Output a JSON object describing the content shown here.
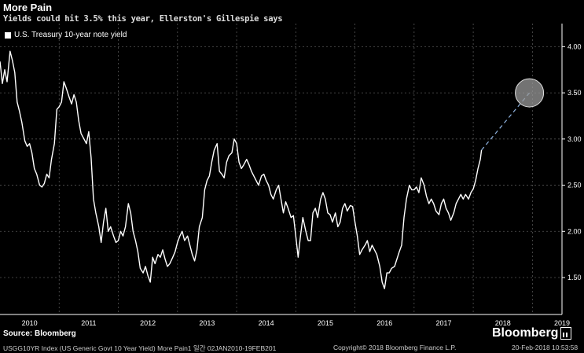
{
  "header": {
    "title": "More Pain",
    "subtitle": "Yields could hit 3.5% this year, Ellerston's Gillespie says"
  },
  "legend": {
    "label": "U.S. Treasury 10-year note yield"
  },
  "source": "Source: Bloomberg",
  "footer": {
    "left": "USGG10YR Index (US Generic Govt 10 Year Yield) More Pain1  일간 02JAN2010-19FEB201",
    "middle": "Copyright© 2018 Bloomberg Finance L.P.",
    "right": "20-Feb-2018 10:53:58"
  },
  "brand": {
    "name": "Bloomberg"
  },
  "colors": {
    "background": "#000000",
    "line": "#ffffff",
    "forecast": "#8fb3e0",
    "target_circle": "#9a9a9a"
  },
  "chart_data": {
    "type": "line",
    "title": "More Pain",
    "x_tick_labels": [
      "2010",
      "2011",
      "2012",
      "2013",
      "2014",
      "2015",
      "2016",
      "2017",
      "2018",
      "2019"
    ],
    "y_tick_labels": [
      "1.50",
      "2.00",
      "2.50",
      "3.00",
      "3.50",
      "4.00"
    ],
    "ylim": [
      1.1,
      4.25
    ],
    "xlim": [
      2010.0,
      2019.5
    ],
    "grid": "dashed",
    "legend_position": "top-left",
    "series": [
      {
        "name": "U.S. Treasury 10-year note yield",
        "points": [
          [
            2010.0,
            3.84
          ],
          [
            2010.04,
            3.6
          ],
          [
            2010.08,
            3.75
          ],
          [
            2010.12,
            3.62
          ],
          [
            2010.17,
            3.95
          ],
          [
            2010.21,
            3.85
          ],
          [
            2010.25,
            3.72
          ],
          [
            2010.29,
            3.4
          ],
          [
            2010.33,
            3.3
          ],
          [
            2010.37,
            3.18
          ],
          [
            2010.42,
            2.98
          ],
          [
            2010.46,
            2.92
          ],
          [
            2010.5,
            2.95
          ],
          [
            2010.54,
            2.85
          ],
          [
            2010.58,
            2.68
          ],
          [
            2010.62,
            2.62
          ],
          [
            2010.67,
            2.5
          ],
          [
            2010.71,
            2.48
          ],
          [
            2010.75,
            2.52
          ],
          [
            2010.79,
            2.62
          ],
          [
            2010.83,
            2.58
          ],
          [
            2010.87,
            2.78
          ],
          [
            2010.92,
            2.95
          ],
          [
            2010.96,
            3.32
          ],
          [
            2011.0,
            3.35
          ],
          [
            2011.04,
            3.4
          ],
          [
            2011.08,
            3.62
          ],
          [
            2011.12,
            3.55
          ],
          [
            2011.17,
            3.45
          ],
          [
            2011.21,
            3.38
          ],
          [
            2011.25,
            3.48
          ],
          [
            2011.29,
            3.4
          ],
          [
            2011.33,
            3.2
          ],
          [
            2011.37,
            3.06
          ],
          [
            2011.42,
            3.0
          ],
          [
            2011.46,
            2.95
          ],
          [
            2011.5,
            3.08
          ],
          [
            2011.54,
            2.8
          ],
          [
            2011.58,
            2.35
          ],
          [
            2011.62,
            2.2
          ],
          [
            2011.67,
            2.05
          ],
          [
            2011.71,
            1.88
          ],
          [
            2011.75,
            2.1
          ],
          [
            2011.79,
            2.25
          ],
          [
            2011.83,
            2.0
          ],
          [
            2011.87,
            2.05
          ],
          [
            2011.92,
            1.95
          ],
          [
            2011.96,
            1.88
          ],
          [
            2012.0,
            1.9
          ],
          [
            2012.04,
            2.0
          ],
          [
            2012.08,
            1.95
          ],
          [
            2012.12,
            2.05
          ],
          [
            2012.17,
            2.3
          ],
          [
            2012.21,
            2.2
          ],
          [
            2012.25,
            2.0
          ],
          [
            2012.29,
            1.9
          ],
          [
            2012.33,
            1.78
          ],
          [
            2012.37,
            1.6
          ],
          [
            2012.42,
            1.55
          ],
          [
            2012.46,
            1.62
          ],
          [
            2012.5,
            1.52
          ],
          [
            2012.54,
            1.45
          ],
          [
            2012.58,
            1.72
          ],
          [
            2012.62,
            1.65
          ],
          [
            2012.67,
            1.75
          ],
          [
            2012.71,
            1.72
          ],
          [
            2012.75,
            1.8
          ],
          [
            2012.79,
            1.7
          ],
          [
            2012.83,
            1.62
          ],
          [
            2012.87,
            1.65
          ],
          [
            2012.92,
            1.72
          ],
          [
            2012.96,
            1.78
          ],
          [
            2013.0,
            1.88
          ],
          [
            2013.04,
            1.95
          ],
          [
            2013.08,
            2.0
          ],
          [
            2013.12,
            1.9
          ],
          [
            2013.17,
            1.95
          ],
          [
            2013.21,
            1.85
          ],
          [
            2013.25,
            1.75
          ],
          [
            2013.29,
            1.68
          ],
          [
            2013.33,
            1.8
          ],
          [
            2013.37,
            2.05
          ],
          [
            2013.42,
            2.15
          ],
          [
            2013.46,
            2.45
          ],
          [
            2013.5,
            2.55
          ],
          [
            2013.54,
            2.6
          ],
          [
            2013.58,
            2.75
          ],
          [
            2013.62,
            2.88
          ],
          [
            2013.67,
            2.95
          ],
          [
            2013.71,
            2.65
          ],
          [
            2013.75,
            2.62
          ],
          [
            2013.79,
            2.58
          ],
          [
            2013.83,
            2.75
          ],
          [
            2013.87,
            2.82
          ],
          [
            2013.92,
            2.85
          ],
          [
            2013.96,
            3.0
          ],
          [
            2014.0,
            2.95
          ],
          [
            2014.04,
            2.75
          ],
          [
            2014.08,
            2.68
          ],
          [
            2014.12,
            2.72
          ],
          [
            2014.17,
            2.78
          ],
          [
            2014.21,
            2.72
          ],
          [
            2014.25,
            2.65
          ],
          [
            2014.29,
            2.6
          ],
          [
            2014.33,
            2.55
          ],
          [
            2014.37,
            2.5
          ],
          [
            2014.42,
            2.6
          ],
          [
            2014.46,
            2.62
          ],
          [
            2014.5,
            2.55
          ],
          [
            2014.54,
            2.5
          ],
          [
            2014.58,
            2.4
          ],
          [
            2014.62,
            2.35
          ],
          [
            2014.67,
            2.45
          ],
          [
            2014.71,
            2.5
          ],
          [
            2014.75,
            2.35
          ],
          [
            2014.79,
            2.2
          ],
          [
            2014.83,
            2.32
          ],
          [
            2014.87,
            2.25
          ],
          [
            2014.92,
            2.15
          ],
          [
            2014.96,
            2.17
          ],
          [
            2015.0,
            1.95
          ],
          [
            2015.04,
            1.72
          ],
          [
            2015.08,
            1.95
          ],
          [
            2015.12,
            2.15
          ],
          [
            2015.17,
            2.0
          ],
          [
            2015.21,
            1.9
          ],
          [
            2015.25,
            1.9
          ],
          [
            2015.29,
            2.2
          ],
          [
            2015.33,
            2.25
          ],
          [
            2015.37,
            2.15
          ],
          [
            2015.42,
            2.35
          ],
          [
            2015.46,
            2.42
          ],
          [
            2015.5,
            2.35
          ],
          [
            2015.54,
            2.2
          ],
          [
            2015.58,
            2.18
          ],
          [
            2015.62,
            2.1
          ],
          [
            2015.67,
            2.2
          ],
          [
            2015.71,
            2.05
          ],
          [
            2015.75,
            2.1
          ],
          [
            2015.79,
            2.25
          ],
          [
            2015.83,
            2.3
          ],
          [
            2015.87,
            2.22
          ],
          [
            2015.92,
            2.28
          ],
          [
            2015.96,
            2.27
          ],
          [
            2016.0,
            2.1
          ],
          [
            2016.04,
            1.95
          ],
          [
            2016.08,
            1.75
          ],
          [
            2016.12,
            1.8
          ],
          [
            2016.17,
            1.85
          ],
          [
            2016.21,
            1.9
          ],
          [
            2016.25,
            1.78
          ],
          [
            2016.29,
            1.85
          ],
          [
            2016.33,
            1.8
          ],
          [
            2016.37,
            1.75
          ],
          [
            2016.42,
            1.62
          ],
          [
            2016.46,
            1.45
          ],
          [
            2016.5,
            1.38
          ],
          [
            2016.54,
            1.55
          ],
          [
            2016.58,
            1.55
          ],
          [
            2016.62,
            1.6
          ],
          [
            2016.67,
            1.62
          ],
          [
            2016.71,
            1.7
          ],
          [
            2016.75,
            1.78
          ],
          [
            2016.79,
            1.85
          ],
          [
            2016.83,
            2.15
          ],
          [
            2016.87,
            2.35
          ],
          [
            2016.92,
            2.5
          ],
          [
            2016.96,
            2.45
          ],
          [
            2017.0,
            2.45
          ],
          [
            2017.04,
            2.48
          ],
          [
            2017.08,
            2.42
          ],
          [
            2017.12,
            2.58
          ],
          [
            2017.17,
            2.5
          ],
          [
            2017.21,
            2.38
          ],
          [
            2017.25,
            2.3
          ],
          [
            2017.29,
            2.35
          ],
          [
            2017.33,
            2.3
          ],
          [
            2017.37,
            2.22
          ],
          [
            2017.42,
            2.18
          ],
          [
            2017.46,
            2.3
          ],
          [
            2017.5,
            2.35
          ],
          [
            2017.54,
            2.25
          ],
          [
            2017.58,
            2.2
          ],
          [
            2017.62,
            2.12
          ],
          [
            2017.67,
            2.2
          ],
          [
            2017.71,
            2.3
          ],
          [
            2017.75,
            2.35
          ],
          [
            2017.79,
            2.4
          ],
          [
            2017.83,
            2.35
          ],
          [
            2017.87,
            2.4
          ],
          [
            2017.92,
            2.35
          ],
          [
            2017.96,
            2.42
          ],
          [
            2018.0,
            2.46
          ],
          [
            2018.04,
            2.55
          ],
          [
            2018.08,
            2.68
          ],
          [
            2018.12,
            2.78
          ],
          [
            2018.14,
            2.88
          ]
        ]
      },
      {
        "forecast": true,
        "points": [
          [
            2018.14,
            2.88
          ],
          [
            2018.95,
            3.5
          ]
        ]
      }
    ],
    "annotations": [
      {
        "type": "circle",
        "x": 2018.95,
        "y": 3.5
      }
    ]
  }
}
